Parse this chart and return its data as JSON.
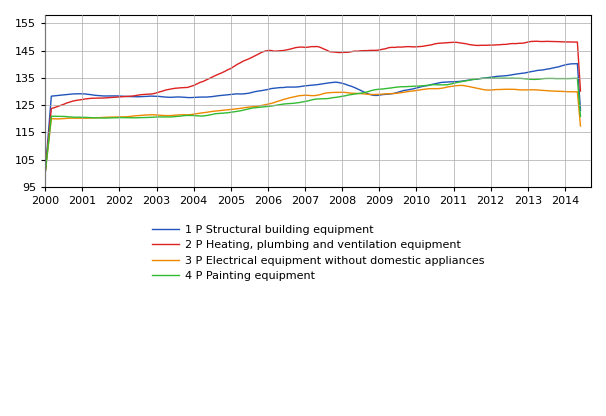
{
  "title": "",
  "ylabel": "",
  "xlabel": "",
  "ylim": [
    95,
    158
  ],
  "yticks": [
    95,
    105,
    115,
    125,
    135,
    145,
    155
  ],
  "colors": {
    "blue": "#2255bb",
    "red": "#dd2222",
    "orange": "#ee8800",
    "green": "#33bb33"
  },
  "legend_labels": [
    "1 P Structural building equipment",
    "2 P Heating, plumbing and ventilation equipment",
    "3 P Electrical equipment without domestic appliances",
    "4 P Painting equipment"
  ],
  "n_months": 174,
  "start_year": 2000,
  "xlim_end": 2014.7
}
